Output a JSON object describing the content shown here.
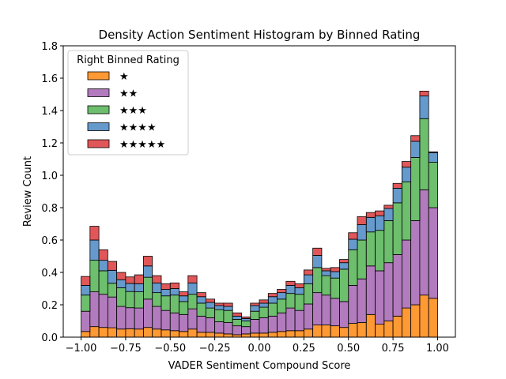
{
  "chart_data": {
    "type": "bar",
    "stacked": true,
    "title": "Density Action Sentiment Histogram by Binned Rating",
    "xlabel": "VADER Sentiment Compound Score",
    "ylabel": "Review Count",
    "xlim": [
      -1.1,
      1.1
    ],
    "ylim": [
      0,
      1.8
    ],
    "x_ticks": [
      -1.0,
      -0.75,
      -0.5,
      -0.25,
      0.0,
      0.25,
      0.5,
      0.75,
      1.0
    ],
    "x_tick_labels": [
      "−1.00",
      "−0.75",
      "−0.50",
      "−0.25",
      "0.00",
      "0.25",
      "0.50",
      "0.75",
      "1.00"
    ],
    "y_ticks": [
      0.0,
      0.2,
      0.4,
      0.6,
      0.8,
      1.0,
      1.2,
      1.4,
      1.6,
      1.8
    ],
    "y_tick_labels": [
      "0.0",
      "0.2",
      "0.4",
      "0.6",
      "0.8",
      "1.0",
      "1.2",
      "1.4",
      "1.6",
      "1.8"
    ],
    "bin_edges_range": [
      -1.0,
      1.0
    ],
    "bin_count": 40,
    "legend": {
      "title": "Right Binned Rating",
      "position": "upper-left"
    },
    "grid": false,
    "series": [
      {
        "name": "★",
        "color": "#ff9933",
        "values": [
          0.035,
          0.065,
          0.06,
          0.058,
          0.05,
          0.052,
          0.05,
          0.06,
          0.05,
          0.045,
          0.04,
          0.035,
          0.05,
          0.03,
          0.03,
          0.025,
          0.02,
          0.015,
          0.02,
          0.025,
          0.025,
          0.03,
          0.035,
          0.04,
          0.04,
          0.05,
          0.075,
          0.075,
          0.07,
          0.06,
          0.085,
          0.09,
          0.14,
          0.08,
          0.1,
          0.13,
          0.18,
          0.2,
          0.26,
          0.24
        ]
      },
      {
        "name": "★★",
        "color": "#b27bbd",
        "values": [
          0.125,
          0.215,
          0.205,
          0.19,
          0.14,
          0.13,
          0.13,
          0.175,
          0.14,
          0.12,
          0.11,
          0.105,
          0.125,
          0.1,
          0.09,
          0.07,
          0.07,
          0.055,
          0.045,
          0.085,
          0.095,
          0.1,
          0.115,
          0.14,
          0.125,
          0.155,
          0.2,
          0.185,
          0.17,
          0.16,
          0.235,
          0.27,
          0.3,
          0.33,
          0.36,
          0.38,
          0.42,
          0.52,
          0.65,
          0.56
        ]
      },
      {
        "name": "★★★",
        "color": "#6dbe6d",
        "values": [
          0.1,
          0.195,
          0.145,
          0.085,
          0.115,
          0.1,
          0.1,
          0.135,
          0.085,
          0.09,
          0.11,
          0.08,
          0.09,
          0.08,
          0.06,
          0.075,
          0.075,
          0.04,
          0.035,
          0.05,
          0.065,
          0.08,
          0.085,
          0.09,
          0.1,
          0.125,
          0.155,
          0.12,
          0.125,
          0.2,
          0.22,
          0.24,
          0.21,
          0.25,
          0.26,
          0.32,
          0.36,
          0.39,
          0.44,
          0.28
        ]
      },
      {
        "name": "★★★★",
        "color": "#6699cc",
        "values": [
          0.06,
          0.125,
          0.065,
          0.08,
          0.05,
          0.05,
          0.05,
          0.07,
          0.06,
          0.04,
          0.04,
          0.035,
          0.07,
          0.04,
          0.035,
          0.025,
          0.025,
          0.02,
          0.015,
          0.035,
          0.025,
          0.04,
          0.04,
          0.05,
          0.04,
          0.055,
          0.075,
          0.03,
          0.04,
          0.04,
          0.065,
          0.095,
          0.09,
          0.09,
          0.075,
          0.09,
          0.09,
          0.1,
          0.14,
          0.06
        ]
      },
      {
        "name": "★★★★★",
        "color": "#e15759",
        "values": [
          0.055,
          0.085,
          0.065,
          0.055,
          0.045,
          0.04,
          0.055,
          0.06,
          0.045,
          0.035,
          0.035,
          0.025,
          0.045,
          0.025,
          0.02,
          0.015,
          0.02,
          0.02,
          0.01,
          0.015,
          0.02,
          0.02,
          0.02,
          0.025,
          0.025,
          0.03,
          0.045,
          0.015,
          0.025,
          0.02,
          0.04,
          0.05,
          0.03,
          0.03,
          0.02,
          0.03,
          0.035,
          0.035,
          0.03,
          0.005
        ]
      }
    ]
  }
}
